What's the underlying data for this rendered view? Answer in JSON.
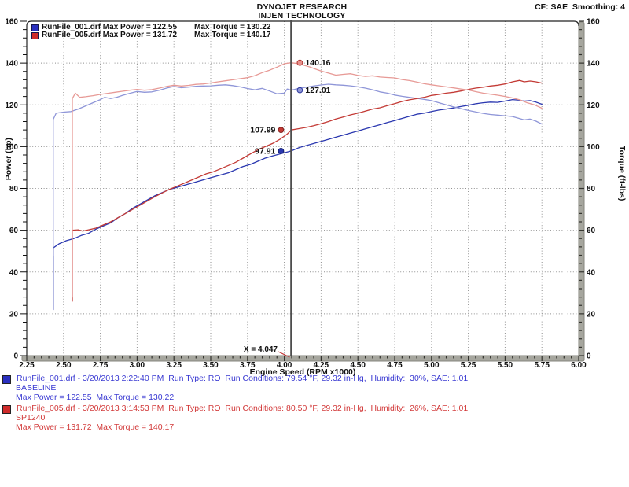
{
  "header": {
    "title_line1": "DYNOJET RESEARCH",
    "title_line2": "INJEN TECHNOLOGY",
    "cf_text": "CF: SAE  Smoothing: 4"
  },
  "chart_data": {
    "type": "line",
    "xlabel": "Engine Speed (RPM x1000)",
    "ylabel_left": "Power (hp)",
    "ylabel_right": "Torque (ft-lbs)",
    "xlim": [
      2.25,
      6.0
    ],
    "ylim": [
      0,
      160
    ],
    "grid": "dotted",
    "x_tick_labels": [
      "2.25",
      "2.50",
      "2.75",
      "3.00",
      "3.25",
      "3.50",
      "3.75",
      "4.00",
      "4.25",
      "4.50",
      "4.75",
      "5.00",
      "5.25",
      "5.50",
      "5.75",
      "6.00"
    ],
    "y_tick_labels": [
      "0",
      "20",
      "40",
      "60",
      "80",
      "100",
      "120",
      "140",
      "160"
    ],
    "legend": [
      {
        "color": "#2a2fc0",
        "text1": "RunFile_001.drf Max Power = 122.55",
        "text2": "Max Torque = 130.22"
      },
      {
        "color": "#cf2b2b",
        "text1": "RunFile_005.drf Max Power = 131.72",
        "text2": "Max Torque = 140.17"
      }
    ],
    "cursor": {
      "x": 4.047,
      "label": "X = 4.047",
      "line_color": "#4d4d4d",
      "pointer_color": "#c23333"
    },
    "markers": [
      {
        "value": 140.16,
        "label": "140.16",
        "side": "right",
        "fill": "#e8918d",
        "stroke": "#b23732"
      },
      {
        "value": 127.01,
        "label": "127.01",
        "side": "right",
        "fill": "#8f96d8",
        "stroke": "#2f3a9e"
      },
      {
        "value": 107.99,
        "label": "107.99",
        "side": "left",
        "fill": "#c33a35",
        "stroke": "#7e1f1c"
      },
      {
        "value": 97.91,
        "label": "97.91",
        "side": "left",
        "fill": "#2b38b0",
        "stroke": "#141f6e"
      }
    ],
    "series": [
      {
        "name": "baseline-power",
        "color": "#2b38b0",
        "points": [
          [
            2.43,
            22
          ],
          [
            2.43,
            51.5
          ],
          [
            2.47,
            53.5
          ],
          [
            2.52,
            55
          ],
          [
            2.57,
            56
          ],
          [
            2.62,
            57.5
          ],
          [
            2.67,
            58.5
          ],
          [
            2.72,
            60.5
          ],
          [
            2.77,
            62
          ],
          [
            2.82,
            63.5
          ],
          [
            2.87,
            66
          ],
          [
            2.92,
            68
          ],
          [
            2.97,
            70.5
          ],
          [
            3.02,
            72.5
          ],
          [
            3.07,
            74.5
          ],
          [
            3.12,
            76.5
          ],
          [
            3.17,
            78
          ],
          [
            3.22,
            79.5
          ],
          [
            3.27,
            80.5
          ],
          [
            3.32,
            81.5
          ],
          [
            3.37,
            82.5
          ],
          [
            3.42,
            83.5
          ],
          [
            3.47,
            84.5
          ],
          [
            3.52,
            85.5
          ],
          [
            3.57,
            86.5
          ],
          [
            3.62,
            87.5
          ],
          [
            3.67,
            89
          ],
          [
            3.72,
            90.5
          ],
          [
            3.77,
            91.5
          ],
          [
            3.82,
            93
          ],
          [
            3.87,
            94.5
          ],
          [
            3.92,
            95.5
          ],
          [
            3.97,
            96.5
          ],
          [
            4.047,
            97.91
          ],
          [
            4.1,
            99.5
          ],
          [
            4.15,
            100.5
          ],
          [
            4.2,
            101.5
          ],
          [
            4.25,
            102.5
          ],
          [
            4.3,
            103.5
          ],
          [
            4.35,
            104.5
          ],
          [
            4.4,
            105.5
          ],
          [
            4.45,
            106.5
          ],
          [
            4.5,
            107.5
          ],
          [
            4.55,
            108.5
          ],
          [
            4.6,
            109.5
          ],
          [
            4.65,
            110.5
          ],
          [
            4.7,
            111.5
          ],
          [
            4.75,
            112.5
          ],
          [
            4.8,
            113.5
          ],
          [
            4.85,
            114.5
          ],
          [
            4.9,
            115.5
          ],
          [
            4.95,
            116
          ],
          [
            5.0,
            116.8
          ],
          [
            5.05,
            117.5
          ],
          [
            5.1,
            118
          ],
          [
            5.15,
            118.5
          ],
          [
            5.2,
            119.2
          ],
          [
            5.25,
            119.8
          ],
          [
            5.3,
            120.5
          ],
          [
            5.35,
            121
          ],
          [
            5.4,
            121.3
          ],
          [
            5.45,
            121.2
          ],
          [
            5.5,
            121.8
          ],
          [
            5.55,
            122.5
          ],
          [
            5.6,
            122.2
          ],
          [
            5.63,
            121.8
          ],
          [
            5.67,
            122
          ],
          [
            5.71,
            121.3
          ],
          [
            5.75,
            120.3
          ]
        ]
      },
      {
        "name": "baseline-torque",
        "color": "#8f96d8",
        "points": [
          [
            2.43,
            48
          ],
          [
            2.43,
            113
          ],
          [
            2.45,
            116
          ],
          [
            2.5,
            116.5
          ],
          [
            2.55,
            116.8
          ],
          [
            2.6,
            118
          ],
          [
            2.65,
            119.5
          ],
          [
            2.7,
            121
          ],
          [
            2.75,
            122.5
          ],
          [
            2.78,
            123.6
          ],
          [
            2.82,
            123
          ],
          [
            2.86,
            123.6
          ],
          [
            2.9,
            124.5
          ],
          [
            2.95,
            125.5
          ],
          [
            3.0,
            126.4
          ],
          [
            3.05,
            126
          ],
          [
            3.1,
            126.2
          ],
          [
            3.15,
            127
          ],
          [
            3.2,
            128
          ],
          [
            3.25,
            128.8
          ],
          [
            3.3,
            128.2
          ],
          [
            3.35,
            128.5
          ],
          [
            3.4,
            128.9
          ],
          [
            3.45,
            129
          ],
          [
            3.5,
            129.1
          ],
          [
            3.55,
            129.4
          ],
          [
            3.6,
            129.6
          ],
          [
            3.65,
            129.2
          ],
          [
            3.7,
            128.6
          ],
          [
            3.75,
            127.8
          ],
          [
            3.8,
            127.2
          ],
          [
            3.85,
            127.9
          ],
          [
            3.9,
            126.6
          ],
          [
            3.95,
            125.3
          ],
          [
            4.0,
            125.6
          ],
          [
            4.02,
            127.6
          ],
          [
            4.047,
            127.01
          ],
          [
            4.1,
            127.9
          ],
          [
            4.15,
            128.4
          ],
          [
            4.2,
            129
          ],
          [
            4.25,
            129.5
          ],
          [
            4.3,
            129.9
          ],
          [
            4.35,
            129.6
          ],
          [
            4.4,
            129.4
          ],
          [
            4.45,
            129.1
          ],
          [
            4.5,
            128.6
          ],
          [
            4.55,
            128
          ],
          [
            4.6,
            127.2
          ],
          [
            4.65,
            126.2
          ],
          [
            4.7,
            125.6
          ],
          [
            4.75,
            124.7
          ],
          [
            4.8,
            124.1
          ],
          [
            4.85,
            123.6
          ],
          [
            4.9,
            123.1
          ],
          [
            4.95,
            122.6
          ],
          [
            5.0,
            122
          ],
          [
            5.05,
            121
          ],
          [
            5.1,
            120
          ],
          [
            5.15,
            119
          ],
          [
            5.2,
            118.2
          ],
          [
            5.25,
            117.3
          ],
          [
            5.3,
            116.6
          ],
          [
            5.35,
            115.9
          ],
          [
            5.4,
            115.4
          ],
          [
            5.45,
            115.1
          ],
          [
            5.5,
            114.8
          ],
          [
            5.55,
            114.4
          ],
          [
            5.6,
            113.4
          ],
          [
            5.63,
            112.8
          ],
          [
            5.67,
            113.2
          ],
          [
            5.71,
            112.2
          ],
          [
            5.75,
            110.8
          ]
        ]
      },
      {
        "name": "sp1240-power",
        "color": "#c33a35",
        "points": [
          [
            2.56,
            26
          ],
          [
            2.56,
            60
          ],
          [
            2.6,
            60.2
          ],
          [
            2.63,
            59.6
          ],
          [
            2.67,
            60.2
          ],
          [
            2.72,
            61
          ],
          [
            2.77,
            62.5
          ],
          [
            2.82,
            64
          ],
          [
            2.87,
            66
          ],
          [
            2.92,
            68
          ],
          [
            2.97,
            70
          ],
          [
            3.02,
            72
          ],
          [
            3.07,
            74
          ],
          [
            3.12,
            76
          ],
          [
            3.17,
            77.8
          ],
          [
            3.22,
            79.6
          ],
          [
            3.27,
            81
          ],
          [
            3.32,
            82.5
          ],
          [
            3.37,
            84
          ],
          [
            3.42,
            85.5
          ],
          [
            3.47,
            87
          ],
          [
            3.52,
            88
          ],
          [
            3.57,
            89.5
          ],
          [
            3.62,
            91
          ],
          [
            3.67,
            92.5
          ],
          [
            3.72,
            94.5
          ],
          [
            3.77,
            96.5
          ],
          [
            3.82,
            98.5
          ],
          [
            3.87,
            100
          ],
          [
            3.92,
            101.5
          ],
          [
            3.97,
            103.5
          ],
          [
            4.02,
            106
          ],
          [
            4.047,
            107.99
          ],
          [
            4.1,
            108.6
          ],
          [
            4.15,
            109.2
          ],
          [
            4.2,
            110
          ],
          [
            4.25,
            111
          ],
          [
            4.3,
            112
          ],
          [
            4.35,
            113.2
          ],
          [
            4.4,
            114.2
          ],
          [
            4.45,
            115.2
          ],
          [
            4.5,
            116
          ],
          [
            4.55,
            117
          ],
          [
            4.6,
            118
          ],
          [
            4.65,
            118.6
          ],
          [
            4.7,
            119.6
          ],
          [
            4.75,
            120.6
          ],
          [
            4.8,
            121.6
          ],
          [
            4.85,
            122.4
          ],
          [
            4.9,
            123
          ],
          [
            4.95,
            123.6
          ],
          [
            5.0,
            124.5
          ],
          [
            5.05,
            125
          ],
          [
            5.1,
            125.6
          ],
          [
            5.15,
            126
          ],
          [
            5.2,
            126.6
          ],
          [
            5.25,
            127.4
          ],
          [
            5.3,
            128
          ],
          [
            5.35,
            128.4
          ],
          [
            5.4,
            129
          ],
          [
            5.45,
            129.4
          ],
          [
            5.5,
            130
          ],
          [
            5.55,
            131
          ],
          [
            5.6,
            131.7
          ],
          [
            5.63,
            131
          ],
          [
            5.67,
            131.4
          ],
          [
            5.71,
            131
          ],
          [
            5.75,
            130.4
          ]
        ]
      },
      {
        "name": "sp1240-torque",
        "color": "#e79a96",
        "points": [
          [
            2.56,
            28
          ],
          [
            2.56,
            123
          ],
          [
            2.58,
            125.6
          ],
          [
            2.61,
            123.6
          ],
          [
            2.65,
            123.9
          ],
          [
            2.7,
            124.4
          ],
          [
            2.75,
            125
          ],
          [
            2.8,
            125.5
          ],
          [
            2.85,
            126
          ],
          [
            2.9,
            126.5
          ],
          [
            2.95,
            127
          ],
          [
            3.0,
            127.4
          ],
          [
            3.05,
            127
          ],
          [
            3.1,
            127.3
          ],
          [
            3.15,
            128
          ],
          [
            3.2,
            128.8
          ],
          [
            3.25,
            129.4
          ],
          [
            3.3,
            129
          ],
          [
            3.35,
            129.3
          ],
          [
            3.4,
            129.8
          ],
          [
            3.45,
            130
          ],
          [
            3.5,
            130.5
          ],
          [
            3.55,
            131
          ],
          [
            3.6,
            131.5
          ],
          [
            3.65,
            132
          ],
          [
            3.7,
            132.5
          ],
          [
            3.75,
            133
          ],
          [
            3.8,
            134
          ],
          [
            3.85,
            135.4
          ],
          [
            3.9,
            136.6
          ],
          [
            3.95,
            138
          ],
          [
            4.0,
            139.7
          ],
          [
            4.047,
            140.16
          ],
          [
            4.09,
            139.8
          ],
          [
            4.13,
            139
          ],
          [
            4.17,
            138.2
          ],
          [
            4.21,
            137.2
          ],
          [
            4.25,
            136.2
          ],
          [
            4.3,
            135.2
          ],
          [
            4.35,
            134.2
          ],
          [
            4.4,
            134.6
          ],
          [
            4.45,
            134.9
          ],
          [
            4.5,
            134.1
          ],
          [
            4.55,
            133.6
          ],
          [
            4.6,
            133.9
          ],
          [
            4.65,
            133.3
          ],
          [
            4.7,
            133.1
          ],
          [
            4.75,
            132.9
          ],
          [
            4.8,
            132.1
          ],
          [
            4.85,
            131.6
          ],
          [
            4.9,
            130.9
          ],
          [
            4.95,
            130.1
          ],
          [
            5.0,
            129.6
          ],
          [
            5.05,
            129.1
          ],
          [
            5.1,
            128.6
          ],
          [
            5.15,
            128.1
          ],
          [
            5.2,
            127.6
          ],
          [
            5.25,
            127.1
          ],
          [
            5.3,
            126.3
          ],
          [
            5.35,
            125.6
          ],
          [
            5.4,
            125.1
          ],
          [
            5.45,
            124.6
          ],
          [
            5.5,
            124
          ],
          [
            5.55,
            123.3
          ],
          [
            5.6,
            122.4
          ],
          [
            5.65,
            121
          ],
          [
            5.7,
            120
          ],
          [
            5.75,
            118.4
          ]
        ]
      }
    ]
  },
  "runs": [
    {
      "color": "#2a2fc0",
      "text_color": "#3a3ad2",
      "line1": "RunFile_001.drf - 3/20/2013 2:22:40 PM  Run Type: RO  Run Conditions: 79.54 °F, 29.32 in-Hg,  Humidity:  30%, SAE: 1.01",
      "line2": "BASELINE",
      "line3": "Max Power = 122.55  Max Torque = 130.22"
    },
    {
      "color": "#cf2b2b",
      "text_color": "#d23a3a",
      "line1": "RunFile_005.drf - 3/20/2013 3:14:53 PM  Run Type: RO  Run Conditions: 80.50 °F, 29.32 in-Hg,  Humidity:  26%, SAE: 1.01",
      "line2": "SP1240",
      "line3": "Max Power = 131.72  Max Torque = 140.17"
    }
  ]
}
